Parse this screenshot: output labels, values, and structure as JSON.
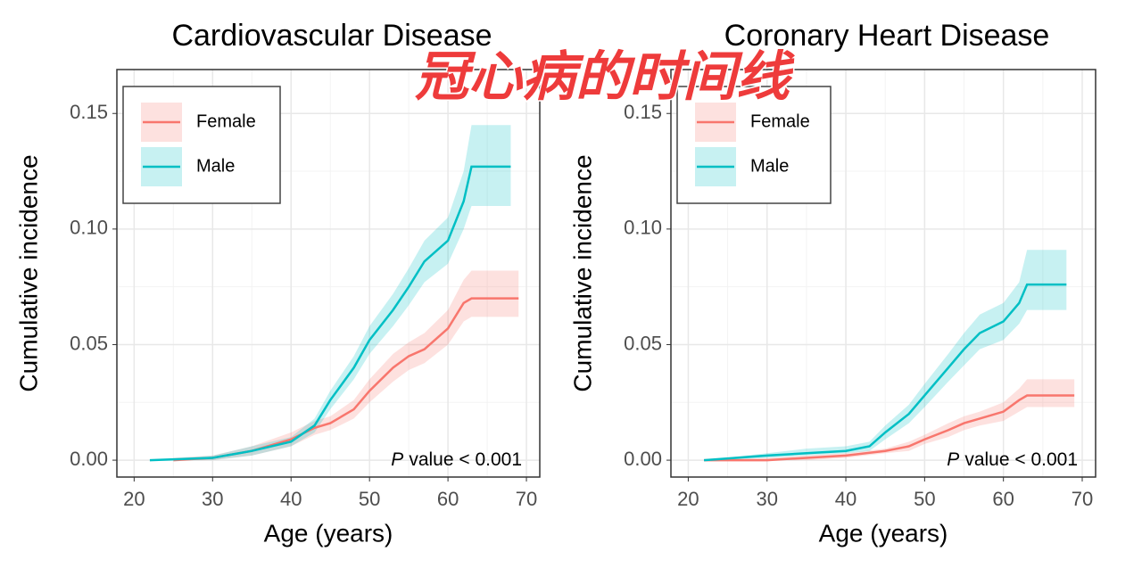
{
  "overlay_text": "冠心病的时间线",
  "chart_data": [
    {
      "type": "line",
      "title": "Cardiovascular Disease",
      "xlabel": "Age (years)",
      "ylabel": "Cumulative incidence",
      "annotation_italic": "P",
      "annotation": "value < 0.001",
      "xlim": [
        17.8,
        71.7
      ],
      "xticks": [
        20,
        30,
        40,
        50,
        60,
        70
      ],
      "ylim": [
        -0.0073,
        0.169
      ],
      "yticks": [
        {
          "value": 0,
          "label": "0.00"
        },
        {
          "value": 0.05,
          "label": "0.05"
        },
        {
          "value": 0.1,
          "label": "0.10"
        },
        {
          "value": 0.15,
          "label": "0.15"
        }
      ],
      "grid": true,
      "legend": "top-left",
      "series": [
        {
          "name": "Female",
          "color": "#f8766d",
          "x": [
            25,
            30,
            35,
            40,
            43,
            45,
            48,
            50,
            53,
            55,
            57,
            60,
            62,
            63,
            69
          ],
          "values": [
            0,
            0.001,
            0.004,
            0.009,
            0.014,
            0.016,
            0.022,
            0.03,
            0.04,
            0.045,
            0.048,
            0.057,
            0.068,
            0.07,
            0.07
          ],
          "lower": [
            0,
            0,
            0.002,
            0.006,
            0.011,
            0.013,
            0.018,
            0.025,
            0.034,
            0.039,
            0.042,
            0.05,
            0.06,
            0.062,
            0.062
          ],
          "upper": [
            0.001,
            0.002,
            0.006,
            0.012,
            0.017,
            0.019,
            0.026,
            0.035,
            0.046,
            0.051,
            0.055,
            0.065,
            0.078,
            0.082,
            0.082
          ]
        },
        {
          "name": "Male",
          "color": "#00bfc4",
          "x": [
            22,
            30,
            35,
            40,
            43,
            45,
            48,
            50,
            53,
            55,
            57,
            60,
            62,
            63,
            68
          ],
          "values": [
            0,
            0.001,
            0.004,
            0.008,
            0.015,
            0.026,
            0.04,
            0.052,
            0.065,
            0.075,
            0.086,
            0.095,
            0.112,
            0.127,
            0.127
          ],
          "lower": [
            0,
            0,
            0.002,
            0.006,
            0.012,
            0.022,
            0.035,
            0.046,
            0.058,
            0.067,
            0.077,
            0.085,
            0.1,
            0.11,
            0.11
          ],
          "upper": [
            0,
            0.002,
            0.006,
            0.01,
            0.018,
            0.03,
            0.045,
            0.058,
            0.072,
            0.083,
            0.095,
            0.105,
            0.125,
            0.145,
            0.145
          ]
        }
      ]
    },
    {
      "type": "line",
      "title": "Coronary Heart Disease",
      "xlabel": "Age (years)",
      "ylabel": "Cumulative incidence",
      "annotation_italic": "P",
      "annotation": "value < 0.001",
      "xlim": [
        17.8,
        71.7
      ],
      "xticks": [
        20,
        30,
        40,
        50,
        60,
        70
      ],
      "ylim": [
        -0.0073,
        0.169
      ],
      "yticks": [
        {
          "value": 0,
          "label": "0.00"
        },
        {
          "value": 0.05,
          "label": "0.05"
        },
        {
          "value": 0.1,
          "label": "0.10"
        },
        {
          "value": 0.15,
          "label": "0.15"
        }
      ],
      "grid": true,
      "legend": "top-left",
      "series": [
        {
          "name": "Female",
          "color": "#f8766d",
          "x": [
            22,
            30,
            35,
            40,
            45,
            48,
            50,
            53,
            55,
            57,
            60,
            62,
            63,
            69
          ],
          "values": [
            0,
            0,
            0.001,
            0.002,
            0.004,
            0.006,
            0.009,
            0.013,
            0.016,
            0.018,
            0.021,
            0.026,
            0.028,
            0.028
          ],
          "lower": [
            0,
            0,
            0,
            0.001,
            0.003,
            0.004,
            0.007,
            0.01,
            0.013,
            0.015,
            0.017,
            0.021,
            0.023,
            0.023
          ],
          "upper": [
            0,
            0.001,
            0.002,
            0.003,
            0.005,
            0.008,
            0.011,
            0.016,
            0.019,
            0.021,
            0.025,
            0.031,
            0.035,
            0.035
          ]
        },
        {
          "name": "Male",
          "color": "#00bfc4",
          "x": [
            22,
            30,
            35,
            40,
            43,
            45,
            48,
            50,
            53,
            55,
            57,
            60,
            62,
            63,
            68
          ],
          "values": [
            0,
            0.002,
            0.003,
            0.004,
            0.006,
            0.012,
            0.02,
            0.028,
            0.04,
            0.048,
            0.055,
            0.06,
            0.068,
            0.076,
            0.076
          ],
          "lower": [
            0,
            0.001,
            0.002,
            0.003,
            0.004,
            0.009,
            0.016,
            0.023,
            0.034,
            0.041,
            0.048,
            0.052,
            0.059,
            0.065,
            0.065
          ],
          "upper": [
            0,
            0.003,
            0.005,
            0.006,
            0.008,
            0.015,
            0.024,
            0.033,
            0.046,
            0.055,
            0.063,
            0.068,
            0.077,
            0.091,
            0.091
          ]
        }
      ]
    }
  ]
}
